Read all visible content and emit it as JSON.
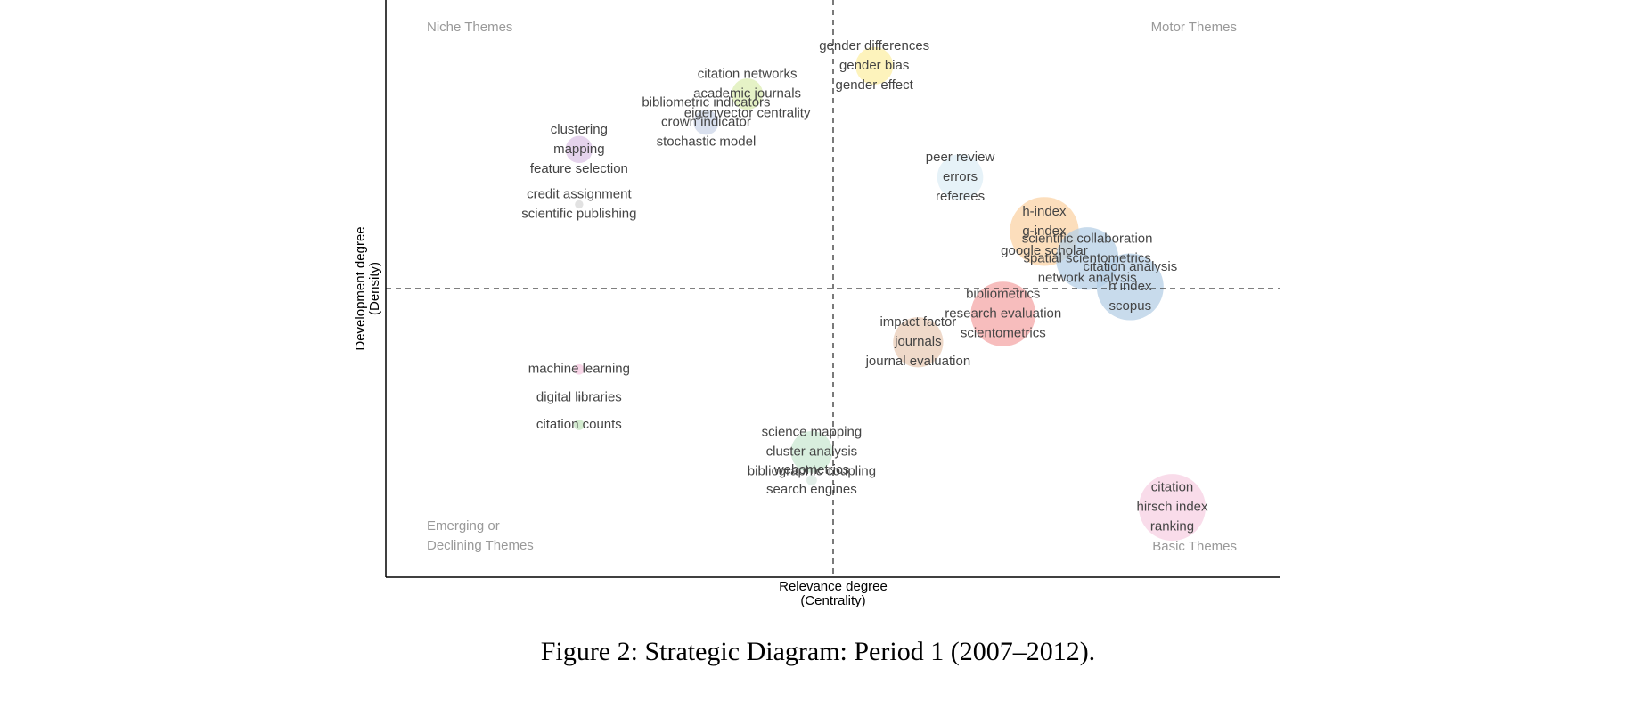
{
  "chart_data": {
    "type": "bubble",
    "xlabel": [
      "Relevance degree",
      "(Centrality)"
    ],
    "ylabel": [
      "Development degree",
      "(Density)"
    ],
    "quadrants": {
      "top_left": [
        "Niche Themes"
      ],
      "top_right": [
        "Motor Themes"
      ],
      "bottom_left": [
        "Emerging or",
        "Declining Themes"
      ],
      "bottom_right": [
        "Basic Themes"
      ]
    },
    "xlim": [
      0,
      1
    ],
    "ylim": [
      0,
      1
    ],
    "points": [
      {
        "labels": [
          "gender differences",
          "gender bias",
          "gender effect"
        ],
        "color": "#fcefa6",
        "x": 0.546,
        "y": 0.886,
        "size": 18
      },
      {
        "labels": [
          "citation networks",
          "academic journals",
          "eigenvector centrality"
        ],
        "color": "#dcedb3",
        "x": 0.404,
        "y": 0.837,
        "size": 15
      },
      {
        "labels": [
          "bibliometric indicators",
          "crown indicator",
          "stochastic model"
        ],
        "color": "#ccd5e8",
        "x": 0.358,
        "y": 0.788,
        "size": 12
      },
      {
        "labels": [
          "clustering",
          "mapping",
          "feature selection"
        ],
        "color": "#dcc4e6",
        "x": 0.216,
        "y": 0.741,
        "size": 13
      },
      {
        "labels": [
          "credit assignment",
          "scientific publishing"
        ],
        "color": "#d8d8d8",
        "x": 0.216,
        "y": 0.646,
        "size": 4
      },
      {
        "labels": [
          "peer review",
          "errors",
          "referees"
        ],
        "color": "#deeef6",
        "x": 0.642,
        "y": 0.693,
        "size": 22
      },
      {
        "labels": [
          "h-index",
          "g-index",
          "google scholar"
        ],
        "color": "#fbd3a5",
        "x": 0.736,
        "y": 0.599,
        "size": 33
      },
      {
        "labels": [
          "scientific collaboration",
          "spatial scientometrics",
          "network analysis"
        ],
        "color": "#b5cfe6",
        "x": 0.784,
        "y": 0.552,
        "size": 30
      },
      {
        "labels": [
          "citation analysis",
          "h index",
          "scopus"
        ],
        "color": "#b5cfe6",
        "x": 0.832,
        "y": 0.503,
        "size": 32
      },
      {
        "labels": [
          "bibliometrics",
          "research evaluation",
          "scientometrics"
        ],
        "color": "#f4a7a7",
        "x": 0.69,
        "y": 0.456,
        "size": 31
      },
      {
        "labels": [
          "impact factor",
          "journals",
          "journal evaluation"
        ],
        "color": "#e9ccb7",
        "x": 0.595,
        "y": 0.407,
        "size": 24
      },
      {
        "labels": [
          "machine learning"
        ],
        "color": "#f5c8e0",
        "x": 0.216,
        "y": 0.36,
        "size": 5
      },
      {
        "labels": [
          "digital libraries"
        ],
        "color": "#d8d8d8",
        "x": 0.216,
        "y": 0.311,
        "size": 3
      },
      {
        "labels": [
          "citation counts"
        ],
        "color": "#c6e6c0",
        "x": 0.216,
        "y": 0.264,
        "size": 5
      },
      {
        "labels": [
          "science mapping",
          "cluster analysis",
          "bibliographic coupling"
        ],
        "color": "#cbe8d3",
        "x": 0.476,
        "y": 0.217,
        "size": 20
      },
      {
        "labels": [
          "webometrics",
          "search engines"
        ],
        "color": "#d8e8e0",
        "x": 0.476,
        "y": 0.168,
        "size": 5
      },
      {
        "labels": [
          "citation",
          "hirsch index",
          "ranking"
        ],
        "color": "#f7d0e3",
        "x": 0.879,
        "y": 0.121,
        "size": 32
      }
    ],
    "caption": "Figure 2: Strategic Diagram: Period 1 (2007–2012)."
  }
}
